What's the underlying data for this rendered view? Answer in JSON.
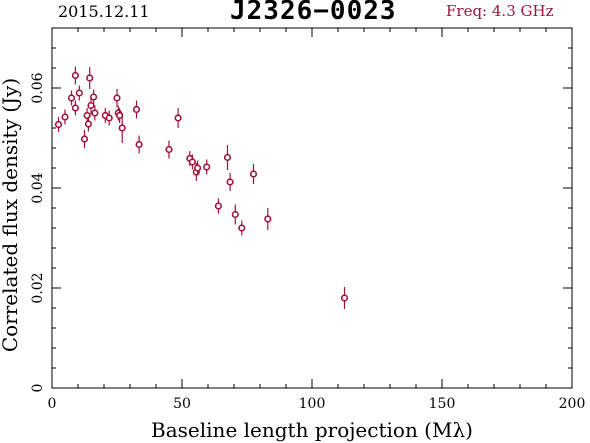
{
  "header": {
    "date": "2015.12.11",
    "source": "J2326−0023",
    "frequency": "Freq: 4.3 GHz"
  },
  "colors": {
    "data": "#a0123a",
    "frequency": "#a0123a",
    "axes": "#000000"
  },
  "chart_data": {
    "type": "scatter",
    "xlabel": "Baseline length projection (Mλ)",
    "ylabel": "Correlated flux density (Jy)",
    "xlim": [
      0,
      200
    ],
    "ylim": [
      0,
      0.072
    ],
    "x_ticks": [
      0,
      50,
      100,
      150,
      200
    ],
    "x_tick_labels": [
      "0",
      "50",
      "100",
      "150",
      "200"
    ],
    "y_ticks": [
      0,
      0.02,
      0.04,
      0.06
    ],
    "y_tick_labels": [
      "0",
      "0.02",
      "0.04",
      "0.06"
    ],
    "grid": false,
    "error_bars": true,
    "points": [
      {
        "x": 2.5,
        "y": 0.0527,
        "err": 0.0015
      },
      {
        "x": 5.0,
        "y": 0.0542,
        "err": 0.0015
      },
      {
        "x": 7.5,
        "y": 0.058,
        "err": 0.0015
      },
      {
        "x": 9.0,
        "y": 0.056,
        "err": 0.0015
      },
      {
        "x": 9.0,
        "y": 0.0625,
        "err": 0.0018
      },
      {
        "x": 10.5,
        "y": 0.059,
        "err": 0.0015
      },
      {
        "x": 12.5,
        "y": 0.0498,
        "err": 0.0018
      },
      {
        "x": 13.5,
        "y": 0.0545,
        "err": 0.0015
      },
      {
        "x": 14.0,
        "y": 0.0528,
        "err": 0.0015
      },
      {
        "x": 14.5,
        "y": 0.062,
        "err": 0.0022
      },
      {
        "x": 15.0,
        "y": 0.0565,
        "err": 0.0018
      },
      {
        "x": 16.0,
        "y": 0.0582,
        "err": 0.0015
      },
      {
        "x": 16.5,
        "y": 0.055,
        "err": 0.0015
      },
      {
        "x": 20.5,
        "y": 0.0545,
        "err": 0.0015
      },
      {
        "x": 22.0,
        "y": 0.054,
        "err": 0.0015
      },
      {
        "x": 25.0,
        "y": 0.058,
        "err": 0.0018
      },
      {
        "x": 25.5,
        "y": 0.055,
        "err": 0.0015
      },
      {
        "x": 26.0,
        "y": 0.0545,
        "err": 0.0015
      },
      {
        "x": 27.0,
        "y": 0.052,
        "err": 0.003
      },
      {
        "x": 32.5,
        "y": 0.0557,
        "err": 0.0018
      },
      {
        "x": 33.5,
        "y": 0.0487,
        "err": 0.0018
      },
      {
        "x": 45.0,
        "y": 0.0477,
        "err": 0.0018
      },
      {
        "x": 48.5,
        "y": 0.054,
        "err": 0.002
      },
      {
        "x": 53.0,
        "y": 0.0459,
        "err": 0.0015
      },
      {
        "x": 54.0,
        "y": 0.0452,
        "err": 0.0015
      },
      {
        "x": 55.5,
        "y": 0.0432,
        "err": 0.0018
      },
      {
        "x": 56.0,
        "y": 0.044,
        "err": 0.0015
      },
      {
        "x": 59.5,
        "y": 0.0442,
        "err": 0.0015
      },
      {
        "x": 64.0,
        "y": 0.0364,
        "err": 0.0015
      },
      {
        "x": 67.5,
        "y": 0.0461,
        "err": 0.0025
      },
      {
        "x": 68.5,
        "y": 0.0412,
        "err": 0.0018
      },
      {
        "x": 70.5,
        "y": 0.0347,
        "err": 0.002
      },
      {
        "x": 73.0,
        "y": 0.032,
        "err": 0.0015
      },
      {
        "x": 77.5,
        "y": 0.0428,
        "err": 0.002
      },
      {
        "x": 83.0,
        "y": 0.0338,
        "err": 0.0022
      },
      {
        "x": 112.5,
        "y": 0.018,
        "err": 0.0022
      }
    ]
  }
}
